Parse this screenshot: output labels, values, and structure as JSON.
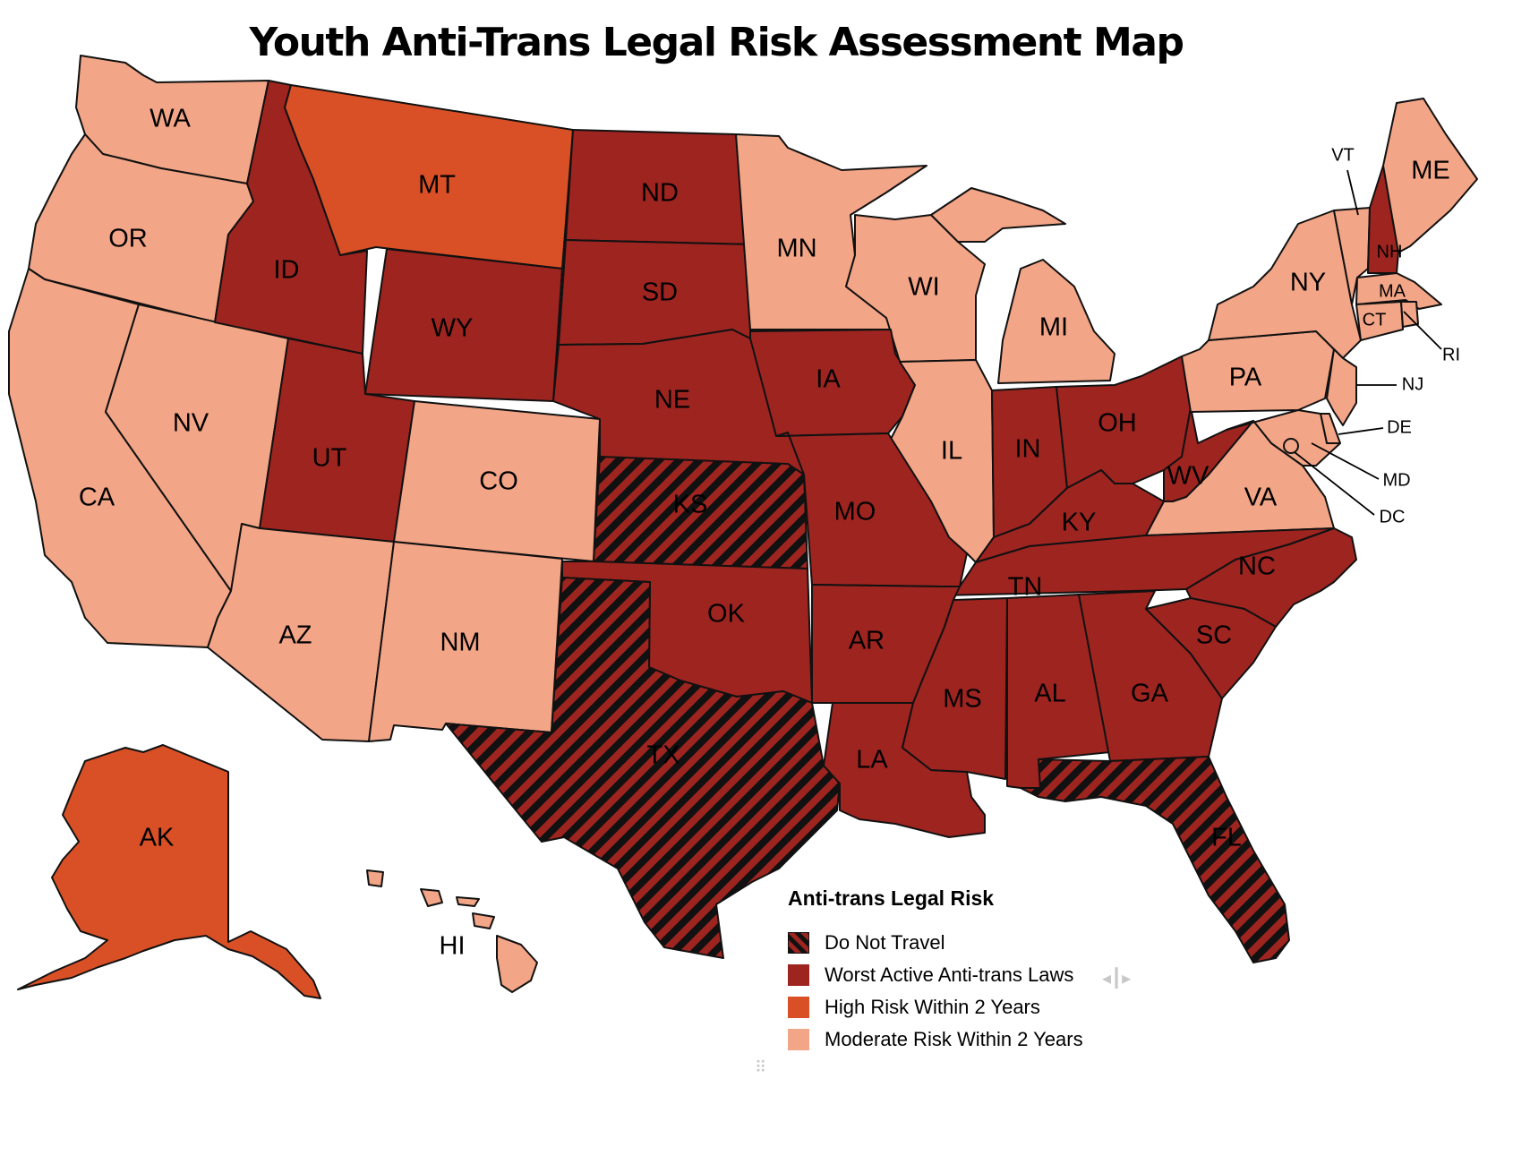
{
  "title": "Youth Anti-Trans Legal Risk Assessment Map",
  "colors": {
    "do_not_travel_a": "#9e2420",
    "do_not_travel_b": "#111111",
    "worst_active": "#9e2420",
    "high_risk": "#d95027",
    "moderate_risk": "#f3a587"
  },
  "legend": {
    "title": "Anti-trans Legal Risk",
    "items": [
      {
        "category": "do_not_travel",
        "label": "Do Not Travel"
      },
      {
        "category": "worst_active",
        "label": "Worst Active Anti-trans Laws"
      },
      {
        "category": "high_risk",
        "label": "High Risk Within 2 Years"
      },
      {
        "category": "moderate_risk",
        "label": "Moderate Risk Within 2 Years"
      }
    ]
  },
  "states": {
    "WA": "moderate_risk",
    "OR": "moderate_risk",
    "CA": "moderate_risk",
    "NV": "moderate_risk",
    "AZ": "moderate_risk",
    "NM": "moderate_risk",
    "CO": "moderate_risk",
    "MN": "moderate_risk",
    "WI": "moderate_risk",
    "MI": "moderate_risk",
    "IL": "moderate_risk",
    "PA": "moderate_risk",
    "NY": "moderate_risk",
    "VA": "moderate_risk",
    "VT": "moderate_risk",
    "ME": "moderate_risk",
    "MA": "moderate_risk",
    "CT": "moderate_risk",
    "RI": "moderate_risk",
    "NJ": "moderate_risk",
    "DE": "moderate_risk",
    "MD": "moderate_risk",
    "DC": "moderate_risk",
    "HI": "moderate_risk",
    "MT": "high_risk",
    "AK": "high_risk",
    "ID": "worst_active",
    "UT": "worst_active",
    "WY": "worst_active",
    "ND": "worst_active",
    "SD": "worst_active",
    "NE": "worst_active",
    "OK": "worst_active",
    "IA": "worst_active",
    "MO": "worst_active",
    "AR": "worst_active",
    "LA": "worst_active",
    "MS": "worst_active",
    "AL": "worst_active",
    "GA": "worst_active",
    "SC": "worst_active",
    "NC": "worst_active",
    "TN": "worst_active",
    "KY": "worst_active",
    "IN": "worst_active",
    "OH": "worst_active",
    "WV": "worst_active",
    "NH": "worst_active",
    "KS": "do_not_travel",
    "TX": "do_not_travel",
    "FL": "do_not_travel"
  }
}
